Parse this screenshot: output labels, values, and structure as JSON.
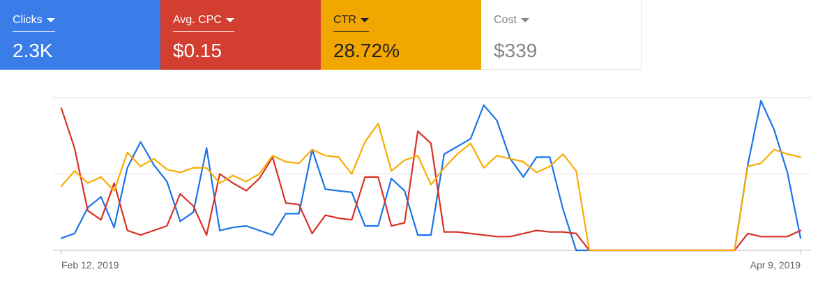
{
  "metrics": [
    {
      "label": "Clicks",
      "value": "2.3K",
      "bg": "#3a7de8",
      "fg": "#ffffff",
      "selected": true
    },
    {
      "label": "Avg. CPC",
      "value": "$0.15",
      "bg": "#d23f31",
      "fg": "#ffffff",
      "selected": true
    },
    {
      "label": "CTR",
      "value": "28.72%",
      "bg": "#f2a600",
      "fg": "#202124",
      "selected": true
    },
    {
      "label": "Cost",
      "value": "$339",
      "bg": "#ffffff",
      "fg": "#80868b",
      "selected": false
    }
  ],
  "icons": {
    "dropdown": "caret-down-icon"
  },
  "chart_data": {
    "type": "line",
    "title": "",
    "xlabel": "",
    "ylabel": "",
    "x_tick_labels": [
      "Feb 12, 2019",
      "Apr 9, 2019"
    ],
    "x": [
      "2019-02-12",
      "2019-02-13",
      "2019-02-14",
      "2019-02-15",
      "2019-02-16",
      "2019-02-17",
      "2019-02-18",
      "2019-02-19",
      "2019-02-20",
      "2019-02-21",
      "2019-02-22",
      "2019-02-23",
      "2019-02-24",
      "2019-02-25",
      "2019-02-26",
      "2019-02-27",
      "2019-02-28",
      "2019-03-01",
      "2019-03-02",
      "2019-03-03",
      "2019-03-04",
      "2019-03-05",
      "2019-03-06",
      "2019-03-07",
      "2019-03-08",
      "2019-03-09",
      "2019-03-10",
      "2019-03-11",
      "2019-03-12",
      "2019-03-13",
      "2019-03-14",
      "2019-03-15",
      "2019-03-16",
      "2019-03-17",
      "2019-03-18",
      "2019-03-19",
      "2019-03-20",
      "2019-03-21",
      "2019-03-22",
      "2019-03-23",
      "2019-03-24",
      "2019-03-25",
      "2019-03-26",
      "2019-03-27",
      "2019-03-28",
      "2019-03-29",
      "2019-03-30",
      "2019-03-31",
      "2019-04-01",
      "2019-04-02",
      "2019-04-03",
      "2019-04-04",
      "2019-04-05",
      "2019-04-06",
      "2019-04-07",
      "2019-04-08",
      "2019-04-09"
    ],
    "series": [
      {
        "metric": "Clicks",
        "color": "#1a73e8",
        "values": [
          8,
          11,
          28,
          35,
          15,
          54,
          71,
          56,
          45,
          19,
          25,
          67,
          13,
          15,
          16,
          13,
          10,
          24,
          24,
          66,
          40,
          39,
          38,
          16,
          16,
          47,
          39,
          10,
          10,
          63,
          68,
          73,
          95,
          85,
          60,
          48,
          61,
          61,
          27,
          0,
          0,
          0,
          0,
          0,
          0,
          0,
          0,
          0,
          0,
          0,
          0,
          0,
          56,
          98,
          79,
          51,
          8
        ]
      },
      {
        "metric": "Avg. CPC",
        "color": "#d93025",
        "values": [
          93,
          67,
          26,
          20,
          44,
          13,
          10,
          13,
          16,
          37,
          29,
          10,
          50,
          44,
          39,
          47,
          61,
          31,
          30,
          11,
          23,
          21,
          20,
          48,
          48,
          16,
          18,
          78,
          70,
          12,
          12,
          11,
          10,
          9,
          9,
          11,
          13,
          12,
          12,
          11,
          0,
          0,
          0,
          0,
          0,
          0,
          0,
          0,
          0,
          0,
          0,
          0,
          11,
          9,
          9,
          9,
          13
        ]
      },
      {
        "metric": "CTR",
        "color": "#f9ab00",
        "values": [
          42,
          52,
          44,
          48,
          39,
          64,
          55,
          60,
          53,
          51,
          54,
          54,
          44,
          49,
          45,
          50,
          62,
          58,
          57,
          66,
          62,
          61,
          50,
          71,
          83,
          52,
          59,
          62,
          43,
          54,
          63,
          70,
          54,
          62,
          60,
          58,
          51,
          55,
          63,
          52,
          0,
          0,
          0,
          0,
          0,
          0,
          0,
          0,
          0,
          0,
          0,
          0,
          55,
          57,
          66,
          63,
          61
        ]
      }
    ],
    "grid": true,
    "legend": "metric cards above chart"
  }
}
